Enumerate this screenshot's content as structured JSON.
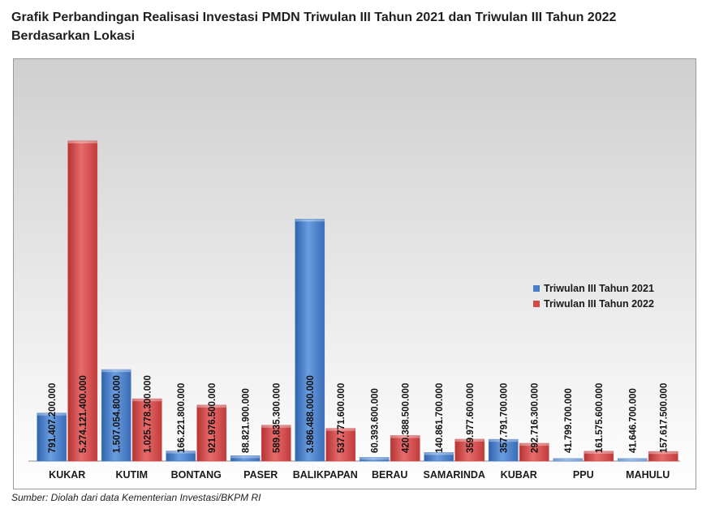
{
  "title_line1": "Grafik Perbandingan Realisasi Investasi PMDN Triwulan III Tahun 2021 dan Triwulan III Tahun 2022",
  "title_line2": "Berdasarkan Lokasi",
  "source": "Sumber: Diolah dari data Kementerian Investasi/BKPM RI",
  "colors": {
    "series_2021": "#4a7ec9",
    "series_2022": "#d24a4a",
    "plot_gradient_top": "#cfcfcf",
    "plot_gradient_bottom": "#ffffff"
  },
  "chart_data": {
    "type": "bar",
    "categories": [
      "KUKAR",
      "KUTIM",
      "BONTANG",
      "PASER",
      "BALIKPAPAN",
      "BERAU",
      "SAMARINDA",
      "KUBAR",
      "PPU",
      "MAHULU"
    ],
    "series": [
      {
        "name": "Triwulan III Tahun 2021",
        "values": [
          791407200000,
          1507054800000,
          166221800000,
          88821900000,
          3986488000000,
          60393600000,
          140861700000,
          357791700000,
          41799700000,
          41646700000
        ],
        "labels": [
          "791.407.200.000",
          "1.507.054.800.000",
          "166.221.800.000",
          "88.821.900.000",
          "3.986.488.000.000",
          "60.393.600.000",
          "140.861.700.000",
          "357.791.700.000",
          "41.799.700.000",
          "41.646.700.000"
        ]
      },
      {
        "name": "Triwulan III Tahun 2022",
        "values": [
          5274121400000,
          1025778300000,
          921976500000,
          589835300000,
          537771600000,
          420388500000,
          359977600000,
          292716300000,
          161575600000,
          157617500000
        ],
        "labels": [
          "5.274.121.400.000",
          "1.025.778.300.000",
          "921.976.500.000",
          "589.835.300.000",
          "537.771.600.000",
          "420.388.500.000",
          "359.977.600.000",
          "292.716.300.000",
          "161.575.600.000",
          "157.617.500.000"
        ]
      }
    ],
    "ylim": [
      0,
      5500000000000
    ],
    "grid": false,
    "legend_position": "right"
  }
}
